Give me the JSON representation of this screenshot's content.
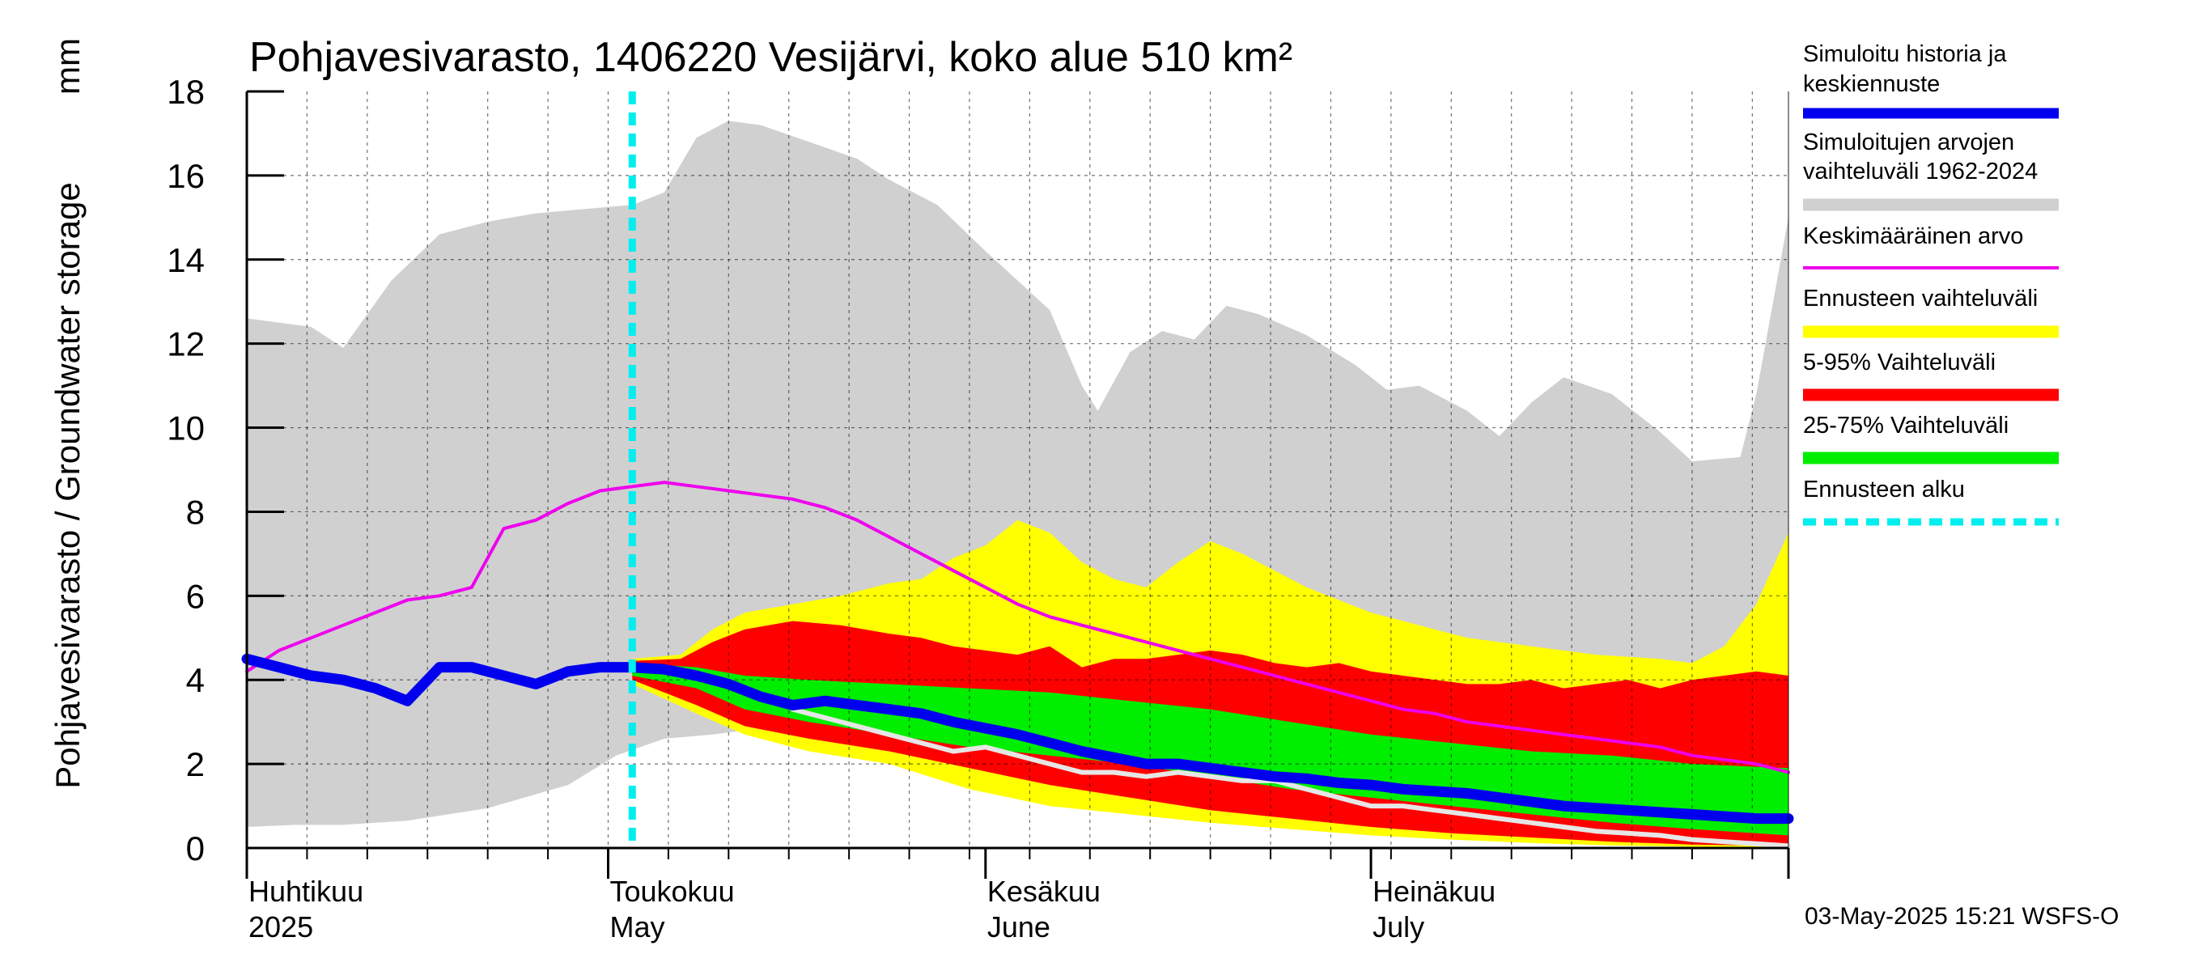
{
  "chart_data": {
    "type": "area",
    "title": "Pohjavesivarasto, 1406220 Vesijärvi, koko alue 510 km²",
    "ylabel": "Pohjavesivarasto / Groundwater storage",
    "yunit": "mm",
    "ylim": [
      0,
      18
    ],
    "yticks": [
      "0",
      "2",
      "4",
      "6",
      "8",
      "10",
      "12",
      "14",
      "16",
      "18"
    ],
    "xlim": [
      0,
      192
    ],
    "grid": true,
    "month_labels": [
      {
        "day": 0,
        "fi": "Huhtikuu",
        "en": "2025"
      },
      {
        "day": 45,
        "fi": "Toukokuu",
        "en": "May"
      },
      {
        "day": 92,
        "fi": "Kesäkuu",
        "en": "June"
      },
      {
        "day": 140,
        "fi": "Heinäkuu",
        "en": "July"
      }
    ],
    "month_ticks": [
      0,
      45,
      92,
      140,
      192
    ],
    "forecast_start_day": 48,
    "legend": [
      {
        "key": "sim",
        "label": [
          "Simuloitu historia ja",
          "keskiennuste"
        ],
        "color": "#0000ee",
        "style": "thick"
      },
      {
        "key": "hist_range",
        "label": [
          "Simuloitujen arvojen",
          "vaihteluväli 1962-2024"
        ],
        "color": "#d0d0d0",
        "style": "band"
      },
      {
        "key": "mean",
        "label": [
          "Keskimääräinen arvo"
        ],
        "color": "#ee00ee",
        "style": "thin"
      },
      {
        "key": "forecast_range",
        "label": [
          "Ennusteen vaihteluväli"
        ],
        "color": "#ffff00",
        "style": "band"
      },
      {
        "key": "p5_95",
        "label": [
          "5-95% Vaihteluväli"
        ],
        "color": "#ff0000",
        "style": "band"
      },
      {
        "key": "p25_75",
        "label": [
          "25-75% Vaihteluväli"
        ],
        "color": "#00ee00",
        "style": "band"
      },
      {
        "key": "start",
        "label": [
          "Ennusteen alku"
        ],
        "color": "#00eeee",
        "style": "dashed"
      }
    ],
    "series": {
      "hist_max": {
        "x": [
          0,
          8,
          12,
          18,
          24,
          30,
          36,
          48,
          52,
          56,
          60,
          64,
          70,
          76,
          80,
          86,
          92,
          100,
          104,
          106,
          110,
          114,
          118,
          122,
          126,
          132,
          138,
          142,
          146,
          152,
          156,
          160,
          164,
          170,
          176,
          180,
          186,
          188,
          192
        ],
        "y": [
          12.6,
          12.4,
          11.9,
          13.5,
          14.6,
          14.9,
          15.1,
          15.3,
          15.6,
          16.9,
          17.3,
          17.2,
          16.8,
          16.4,
          15.9,
          15.3,
          14.2,
          12.8,
          11.0,
          10.4,
          11.8,
          12.3,
          12.1,
          12.9,
          12.7,
          12.2,
          11.5,
          10.9,
          11.0,
          10.4,
          9.8,
          10.6,
          11.2,
          10.8,
          9.9,
          9.2,
          9.3,
          10.8,
          15.0
        ]
      },
      "hist_min": {
        "x": [
          0,
          6,
          12,
          20,
          30,
          40,
          46,
          52,
          58,
          64,
          70,
          80,
          92,
          100,
          110,
          120,
          130,
          140,
          150,
          160,
          170,
          180,
          192
        ],
        "y": [
          0.5,
          0.55,
          0.55,
          0.65,
          0.95,
          1.5,
          2.2,
          2.6,
          2.7,
          2.85,
          2.8,
          2.1,
          1.6,
          1.2,
          0.95,
          0.8,
          0.6,
          0.4,
          0.3,
          0.2,
          0.12,
          0.06,
          0.05
        ]
      },
      "mean": {
        "x": [
          0,
          4,
          8,
          12,
          16,
          20,
          24,
          28,
          32,
          36,
          40,
          44,
          48,
          52,
          56,
          60,
          64,
          68,
          72,
          76,
          80,
          84,
          88,
          92,
          96,
          100,
          104,
          108,
          112,
          116,
          120,
          124,
          128,
          132,
          136,
          140,
          144,
          148,
          152,
          156,
          160,
          164,
          168,
          172,
          176,
          180,
          184,
          188,
          192
        ],
        "y": [
          4.2,
          4.7,
          5.0,
          5.3,
          5.6,
          5.9,
          6.0,
          6.2,
          7.6,
          7.8,
          8.2,
          8.5,
          8.6,
          8.7,
          8.6,
          8.5,
          8.4,
          8.3,
          8.1,
          7.8,
          7.4,
          7.0,
          6.6,
          6.2,
          5.8,
          5.5,
          5.3,
          5.1,
          4.9,
          4.7,
          4.5,
          4.3,
          4.1,
          3.9,
          3.7,
          3.5,
          3.3,
          3.2,
          3.0,
          2.9,
          2.8,
          2.7,
          2.6,
          2.5,
          2.4,
          2.2,
          2.1,
          2.0,
          1.8
        ]
      },
      "sim": {
        "x": [
          0,
          4,
          8,
          12,
          16,
          20,
          24,
          28,
          32,
          36,
          40,
          44,
          48,
          52,
          56,
          60,
          64,
          68,
          72,
          76,
          80,
          84,
          88,
          92,
          96,
          100,
          104,
          108,
          112,
          116,
          120,
          124,
          128,
          132,
          136,
          140,
          144,
          148,
          152,
          156,
          160,
          164,
          168,
          172,
          176,
          180,
          184,
          188,
          192
        ],
        "y": [
          4.5,
          4.3,
          4.1,
          4.0,
          3.8,
          3.5,
          4.3,
          4.3,
          4.1,
          3.9,
          4.2,
          4.3,
          4.3,
          4.25,
          4.1,
          3.9,
          3.6,
          3.4,
          3.5,
          3.4,
          3.3,
          3.2,
          3.0,
          2.85,
          2.7,
          2.5,
          2.3,
          2.15,
          2.0,
          2.0,
          1.9,
          1.8,
          1.7,
          1.65,
          1.55,
          1.5,
          1.4,
          1.35,
          1.3,
          1.2,
          1.1,
          1.0,
          0.95,
          0.9,
          0.85,
          0.8,
          0.75,
          0.7,
          0.7
        ]
      },
      "p25_75_upper": {
        "x": [
          48,
          56,
          62,
          70,
          80,
          90,
          100,
          110,
          120,
          130,
          140,
          150,
          160,
          170,
          180,
          192
        ],
        "y": [
          4.4,
          4.3,
          4.1,
          4.0,
          3.9,
          3.8,
          3.7,
          3.5,
          3.3,
          3.0,
          2.7,
          2.5,
          2.3,
          2.2,
          2.0,
          1.9
        ]
      },
      "p25_75_lower": {
        "x": [
          48,
          56,
          62,
          70,
          80,
          90,
          100,
          110,
          120,
          130,
          140,
          150,
          160,
          170,
          180,
          192
        ],
        "y": [
          4.1,
          3.8,
          3.3,
          3.0,
          2.7,
          2.4,
          2.2,
          2.0,
          1.7,
          1.4,
          1.2,
          1.0,
          0.8,
          0.6,
          0.45,
          0.3
        ]
      },
      "p5_95_upper": {
        "x": [
          48,
          54,
          58,
          62,
          68,
          74,
          80,
          84,
          88,
          92,
          96,
          100,
          104,
          108,
          112,
          116,
          120,
          124,
          128,
          132,
          136,
          140,
          144,
          148,
          152,
          156,
          160,
          164,
          168,
          172,
          176,
          180,
          184,
          188,
          192
        ],
        "y": [
          4.45,
          4.5,
          4.9,
          5.2,
          5.4,
          5.3,
          5.1,
          5.0,
          4.8,
          4.7,
          4.6,
          4.8,
          4.3,
          4.5,
          4.5,
          4.6,
          4.7,
          4.6,
          4.4,
          4.3,
          4.4,
          4.2,
          4.1,
          4.0,
          3.9,
          3.9,
          4.0,
          3.8,
          3.9,
          4.0,
          3.8,
          4.0,
          4.1,
          4.2,
          4.1
        ]
      },
      "p5_95_lower": {
        "x": [
          48,
          56,
          62,
          70,
          80,
          90,
          100,
          110,
          120,
          130,
          140,
          150,
          160,
          170,
          180,
          192
        ],
        "y": [
          4.0,
          3.4,
          2.9,
          2.6,
          2.3,
          1.9,
          1.5,
          1.2,
          0.9,
          0.7,
          0.5,
          0.35,
          0.25,
          0.15,
          0.08,
          0.05
        ]
      },
      "range_upper": {
        "x": [
          48,
          54,
          58,
          62,
          68,
          74,
          80,
          84,
          88,
          92,
          96,
          100,
          104,
          108,
          112,
          116,
          120,
          124,
          128,
          132,
          136,
          140,
          144,
          152,
          160,
          168,
          176,
          180,
          184,
          188,
          192
        ],
        "y": [
          4.5,
          4.6,
          5.2,
          5.6,
          5.8,
          6.0,
          6.3,
          6.4,
          6.9,
          7.2,
          7.8,
          7.5,
          6.8,
          6.4,
          6.2,
          6.8,
          7.3,
          7.0,
          6.6,
          6.2,
          5.9,
          5.6,
          5.4,
          5.0,
          4.8,
          4.6,
          4.5,
          4.4,
          4.8,
          5.8,
          7.5
        ]
      },
      "range_lower": {
        "x": [
          48,
          56,
          62,
          70,
          80,
          90,
          100,
          110,
          120,
          130,
          140,
          150,
          160,
          170,
          180,
          192
        ],
        "y": [
          3.9,
          3.2,
          2.7,
          2.3,
          2.0,
          1.4,
          1.0,
          0.8,
          0.6,
          0.45,
          0.3,
          0.2,
          0.12,
          0.06,
          0.03,
          0.02
        ]
      },
      "light_line": {
        "x": [
          68,
          72,
          76,
          80,
          84,
          88,
          92,
          96,
          100,
          104,
          108,
          112,
          116,
          120,
          124,
          128,
          132,
          136,
          140,
          144,
          148,
          152,
          156,
          160,
          164,
          168,
          172,
          176,
          180,
          184,
          188,
          192
        ],
        "y": [
          3.3,
          3.1,
          2.9,
          2.7,
          2.5,
          2.3,
          2.4,
          2.2,
          2.0,
          1.8,
          1.8,
          1.7,
          1.8,
          1.7,
          1.6,
          1.6,
          1.4,
          1.2,
          1.0,
          1.0,
          0.9,
          0.8,
          0.7,
          0.6,
          0.5,
          0.4,
          0.35,
          0.3,
          0.2,
          0.15,
          0.1,
          0.05
        ]
      }
    }
  },
  "footer": "03-May-2025 15:21 WSFS-O"
}
